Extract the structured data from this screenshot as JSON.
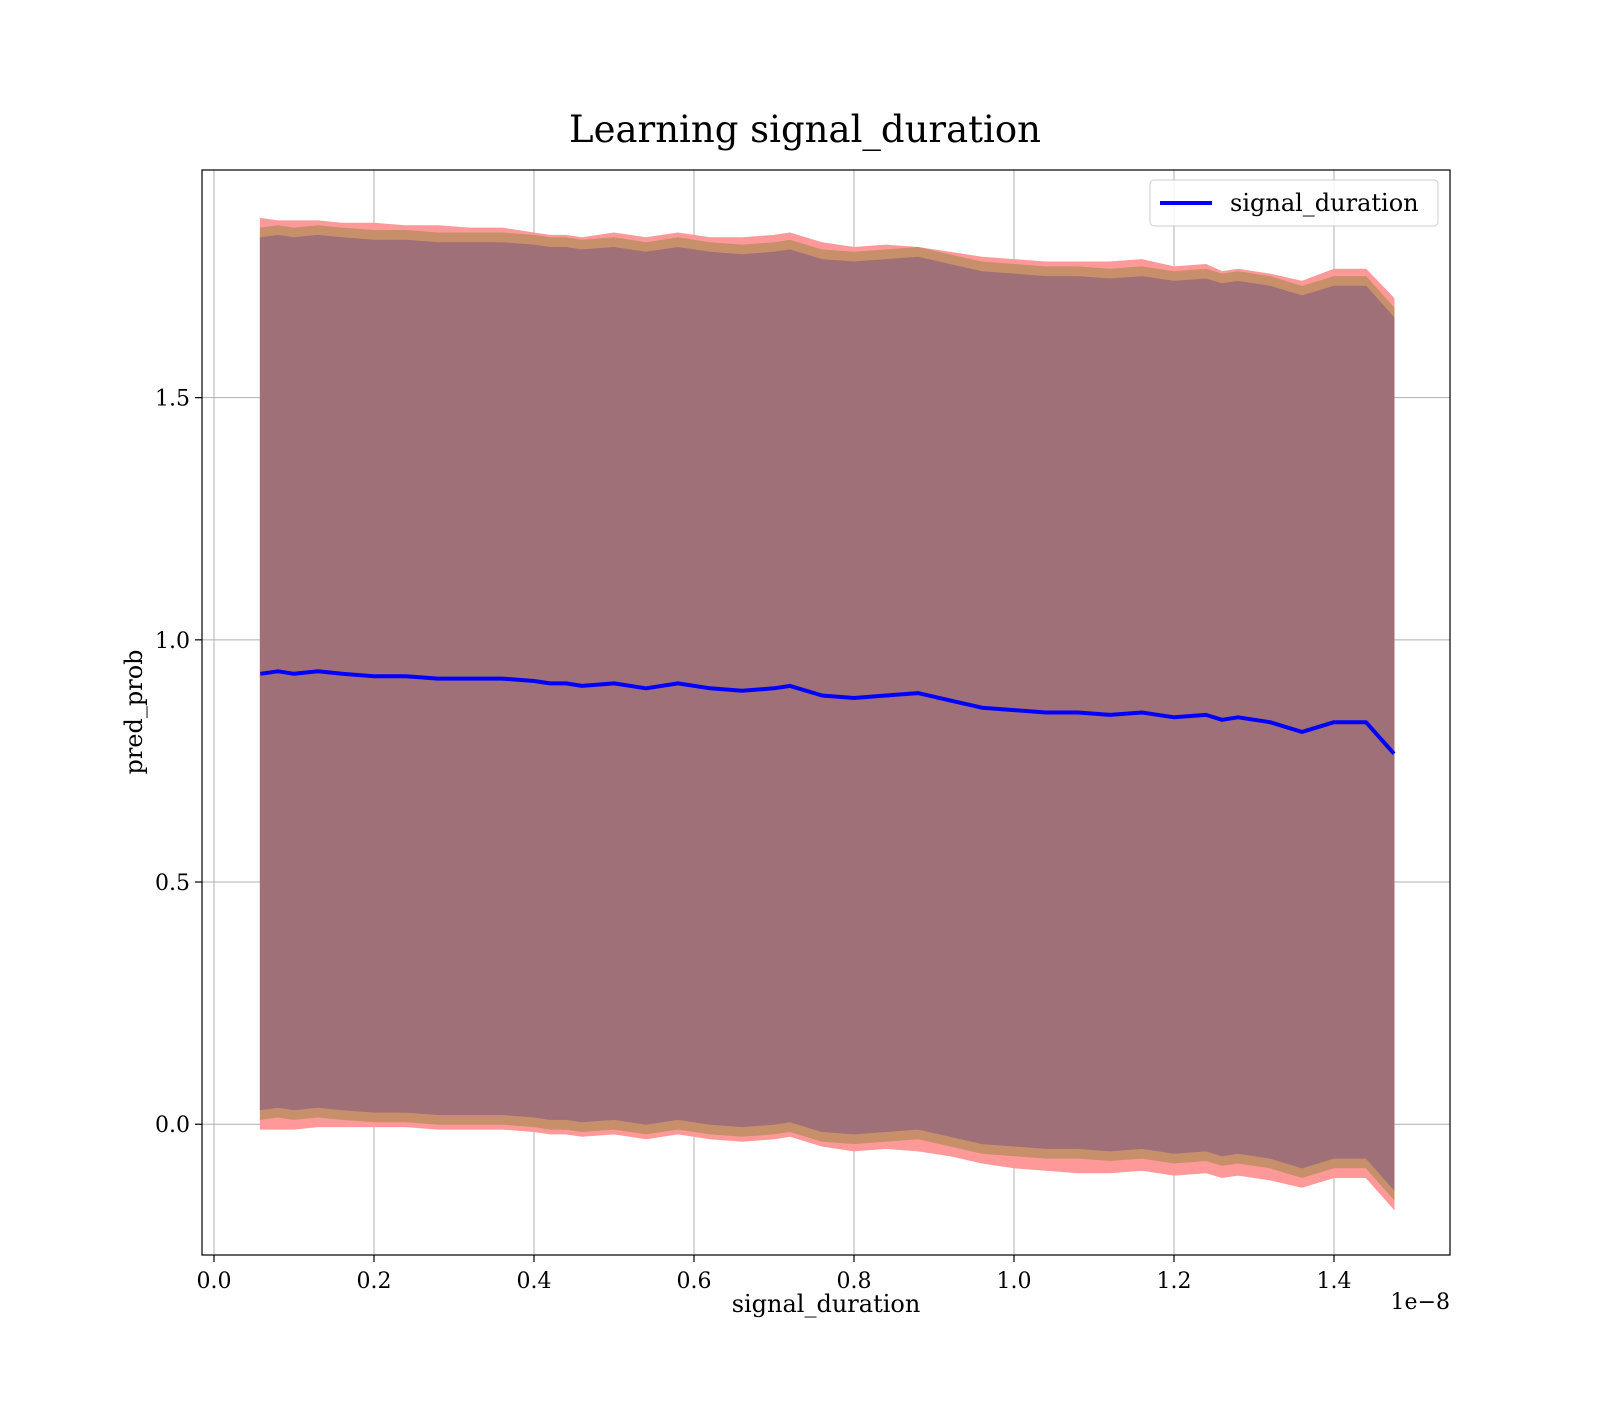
{
  "chart_data": {
    "type": "line",
    "title": "Learning signal_duration",
    "xlabel": "signal_duration",
    "ylabel": "pred_prob",
    "x_offset_label": "1e−8",
    "xlim": [
      -0.015,
      1.545
    ],
    "ylim": [
      -0.27,
      1.97
    ],
    "x_ticks": [
      0.0,
      0.2,
      0.4,
      0.6,
      0.8,
      1.0,
      1.2,
      1.4
    ],
    "x_tick_labels": [
      "0.0",
      "0.2",
      "0.4",
      "0.6",
      "0.8",
      "1.0",
      "1.2",
      "1.4"
    ],
    "y_ticks": [
      0.0,
      0.5,
      1.0,
      1.5
    ],
    "y_tick_labels": [
      "0.0",
      "0.5",
      "1.0",
      "1.5"
    ],
    "grid": true,
    "legend_position": "top-right",
    "colors": {
      "line": "#0000ff",
      "band_outer": "#ff9999",
      "band_middle": "#c8906a",
      "band_inner": "#a07078"
    },
    "series": [
      {
        "name": "signal_duration",
        "x": [
          0.058,
          0.08,
          0.1,
          0.13,
          0.16,
          0.2,
          0.24,
          0.28,
          0.32,
          0.36,
          0.4,
          0.42,
          0.44,
          0.46,
          0.5,
          0.54,
          0.58,
          0.62,
          0.66,
          0.7,
          0.72,
          0.76,
          0.8,
          0.84,
          0.88,
          0.92,
          0.96,
          1.0,
          1.04,
          1.08,
          1.12,
          1.16,
          1.2,
          1.24,
          1.26,
          1.28,
          1.32,
          1.36,
          1.4,
          1.44,
          1.475
        ],
        "y": [
          0.93,
          0.935,
          0.93,
          0.935,
          0.93,
          0.925,
          0.925,
          0.92,
          0.92,
          0.92,
          0.915,
          0.91,
          0.91,
          0.905,
          0.91,
          0.9,
          0.91,
          0.9,
          0.895,
          0.9,
          0.905,
          0.885,
          0.88,
          0.885,
          0.89,
          0.875,
          0.86,
          0.855,
          0.85,
          0.85,
          0.845,
          0.85,
          0.84,
          0.845,
          0.835,
          0.84,
          0.83,
          0.81,
          0.83,
          0.83,
          0.765
        ]
      }
    ],
    "bands": [
      {
        "color_key": "band_outer",
        "upper": [
          1.87,
          1.865,
          1.865,
          1.865,
          1.86,
          1.86,
          1.855,
          1.855,
          1.85,
          1.85,
          1.84,
          1.835,
          1.835,
          1.83,
          1.84,
          1.83,
          1.84,
          1.83,
          1.83,
          1.835,
          1.84,
          1.82,
          1.81,
          1.815,
          1.81,
          1.8,
          1.79,
          1.785,
          1.78,
          1.78,
          1.78,
          1.785,
          1.77,
          1.775,
          1.76,
          1.765,
          1.755,
          1.74,
          1.765,
          1.765,
          1.705
        ],
        "lower": [
          -0.01,
          -0.01,
          -0.01,
          -0.005,
          -0.005,
          -0.005,
          -0.005,
          -0.01,
          -0.01,
          -0.01,
          -0.015,
          -0.02,
          -0.02,
          -0.025,
          -0.02,
          -0.03,
          -0.02,
          -0.03,
          -0.035,
          -0.03,
          -0.025,
          -0.045,
          -0.055,
          -0.05,
          -0.055,
          -0.065,
          -0.08,
          -0.09,
          -0.095,
          -0.1,
          -0.1,
          -0.095,
          -0.105,
          -0.1,
          -0.11,
          -0.105,
          -0.115,
          -0.13,
          -0.11,
          -0.11,
          -0.175
        ]
      },
      {
        "color_key": "band_middle",
        "upper": [
          1.85,
          1.855,
          1.85,
          1.855,
          1.85,
          1.845,
          1.845,
          1.84,
          1.84,
          1.84,
          1.835,
          1.83,
          1.83,
          1.825,
          1.83,
          1.82,
          1.83,
          1.82,
          1.815,
          1.82,
          1.825,
          1.805,
          1.8,
          1.805,
          1.81,
          1.795,
          1.78,
          1.775,
          1.77,
          1.77,
          1.765,
          1.77,
          1.76,
          1.765,
          1.755,
          1.76,
          1.75,
          1.73,
          1.75,
          1.75,
          1.685
        ],
        "lower": [
          0.01,
          0.015,
          0.01,
          0.015,
          0.01,
          0.005,
          0.005,
          0.0,
          0.0,
          0.0,
          -0.005,
          -0.01,
          -0.01,
          -0.015,
          -0.01,
          -0.02,
          -0.01,
          -0.02,
          -0.025,
          -0.02,
          -0.015,
          -0.035,
          -0.04,
          -0.035,
          -0.03,
          -0.045,
          -0.06,
          -0.065,
          -0.07,
          -0.07,
          -0.075,
          -0.07,
          -0.08,
          -0.075,
          -0.085,
          -0.08,
          -0.09,
          -0.11,
          -0.09,
          -0.09,
          -0.155
        ]
      },
      {
        "color_key": "band_inner",
        "upper": [
          1.83,
          1.835,
          1.83,
          1.835,
          1.83,
          1.825,
          1.825,
          1.82,
          1.82,
          1.82,
          1.815,
          1.81,
          1.81,
          1.805,
          1.81,
          1.8,
          1.81,
          1.8,
          1.795,
          1.8,
          1.805,
          1.785,
          1.78,
          1.785,
          1.79,
          1.775,
          1.76,
          1.755,
          1.75,
          1.75,
          1.745,
          1.75,
          1.74,
          1.745,
          1.735,
          1.74,
          1.73,
          1.71,
          1.73,
          1.73,
          1.665
        ],
        "lower": [
          0.03,
          0.035,
          0.03,
          0.035,
          0.03,
          0.025,
          0.025,
          0.02,
          0.02,
          0.02,
          0.015,
          0.01,
          0.01,
          0.005,
          0.01,
          0.0,
          0.01,
          0.0,
          -0.005,
          0.0,
          0.005,
          -0.015,
          -0.02,
          -0.015,
          -0.01,
          -0.025,
          -0.04,
          -0.045,
          -0.05,
          -0.05,
          -0.055,
          -0.05,
          -0.06,
          -0.055,
          -0.065,
          -0.06,
          -0.07,
          -0.09,
          -0.07,
          -0.07,
          -0.135
        ]
      }
    ]
  }
}
